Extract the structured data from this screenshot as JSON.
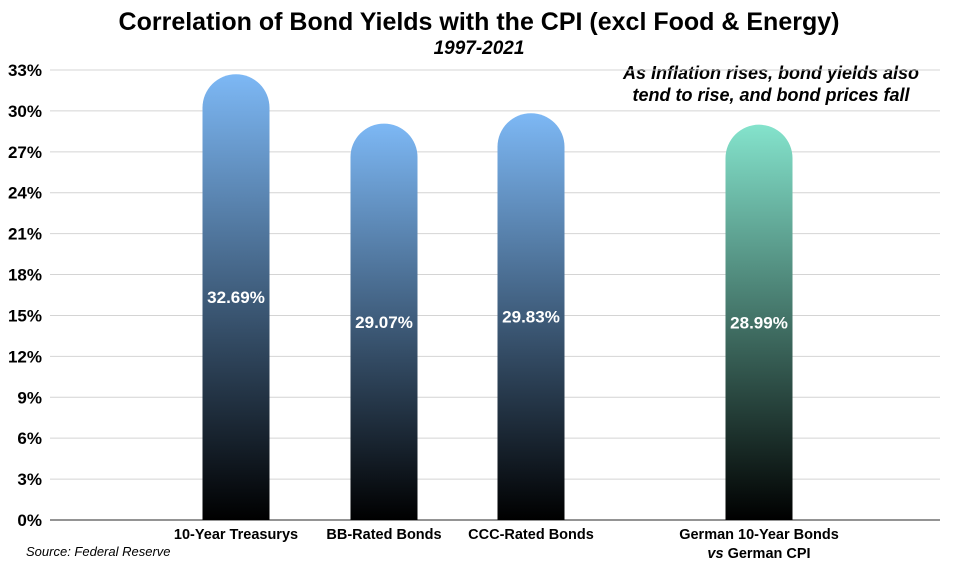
{
  "chart_data": {
    "type": "bar",
    "title": "Correlation of Bond Yields with the CPI (excl Food & Energy)",
    "subtitle": "1997-2021",
    "annotation_lines": [
      "As Inflation rises, bond yields also",
      "tend to rise, and bond prices fall"
    ],
    "source": "Source: Federal Reserve",
    "categories": [
      {
        "lines": [
          "10-Year Treasurys"
        ]
      },
      {
        "lines": [
          "BB-Rated Bonds"
        ]
      },
      {
        "lines": [
          "CCC-Rated Bonds"
        ]
      },
      {
        "lines": [
          "German 10-Year Bonds",
          "vs German CPI"
        ],
        "italic_prefix": "vs"
      }
    ],
    "values": [
      32.69,
      29.07,
      29.83,
      28.99
    ],
    "value_labels": [
      "32.69%",
      "29.07%",
      "29.83%",
      "28.99%"
    ],
    "bar_colors": [
      {
        "top": "#7db8f5",
        "bottom": "#000000"
      },
      {
        "top": "#7db8f5",
        "bottom": "#000000"
      },
      {
        "top": "#7db8f5",
        "bottom": "#000000"
      },
      {
        "top": "#84e3cc",
        "bottom": "#000000"
      }
    ],
    "ylim": [
      0,
      33
    ],
    "yticks": [
      0,
      3,
      6,
      9,
      12,
      15,
      18,
      21,
      24,
      27,
      30,
      33
    ],
    "ytick_labels": [
      "0%",
      "3%",
      "6%",
      "9%",
      "12%",
      "15%",
      "18%",
      "21%",
      "24%",
      "27%",
      "30%",
      "33%"
    ],
    "grid": true,
    "xlabel": "",
    "ylabel": ""
  }
}
